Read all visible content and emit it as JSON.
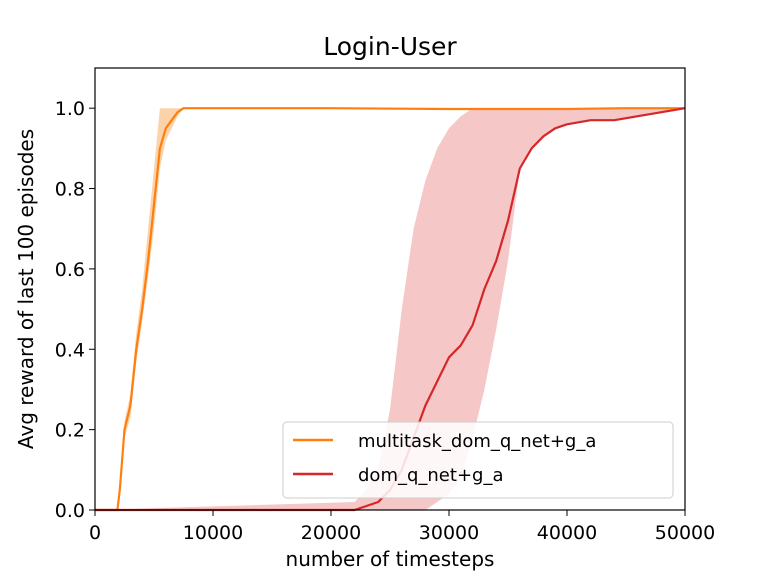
{
  "chart_data": {
    "type": "line",
    "title": "Login-User",
    "xlabel": "number of timesteps",
    "ylabel": "Avg reward of last 100 episodes",
    "xlim": [
      0,
      50000
    ],
    "ylim": [
      0,
      1.1
    ],
    "xticks": [
      "0",
      "10000",
      "20000",
      "30000",
      "40000",
      "50000"
    ],
    "yticks": [
      "0.0",
      "0.2",
      "0.4",
      "0.6",
      "0.8",
      "1.0"
    ],
    "xtick_values": [
      0,
      10000,
      20000,
      30000,
      40000,
      50000
    ],
    "ytick_values": [
      0.0,
      0.2,
      0.4,
      0.6,
      0.8,
      1.0
    ],
    "grid": false,
    "legend_position": "bottom-right",
    "series": [
      {
        "name": "multitask_dom_q_net+g_a",
        "color": "#ff7f0e",
        "band_color": "#f8c48f",
        "x": [
          0,
          1900,
          2100,
          2500,
          3000,
          3500,
          4000,
          4500,
          5000,
          5500,
          6000,
          6500,
          7000,
          7500,
          8000,
          10000,
          20000,
          30000,
          40000,
          45000,
          50000
        ],
        "y": [
          0,
          0,
          0.05,
          0.2,
          0.26,
          0.4,
          0.5,
          0.62,
          0.76,
          0.9,
          0.95,
          0.97,
          0.99,
          1.0,
          1.0,
          1.0,
          1.0,
          0.998,
          0.998,
          1.0,
          1.0
        ],
        "lower": [
          0,
          0,
          0.04,
          0.18,
          0.23,
          0.37,
          0.47,
          0.58,
          0.7,
          0.85,
          0.92,
          0.95,
          0.98,
          1.0,
          1.0,
          1.0,
          1.0,
          0.998,
          0.998,
          1.0,
          1.0
        ],
        "upper": [
          0,
          0,
          0.06,
          0.22,
          0.29,
          0.44,
          0.55,
          0.7,
          0.85,
          1.0,
          1.0,
          1.0,
          1.0,
          1.0,
          1.0,
          1.0,
          1.0,
          0.998,
          0.998,
          1.0,
          1.0
        ]
      },
      {
        "name": "dom_q_net+g_a",
        "color": "#d62728",
        "band_color": "#f2b4b4",
        "x": [
          0,
          22000,
          23000,
          24000,
          25000,
          26000,
          27000,
          28000,
          29000,
          30000,
          31000,
          32000,
          33000,
          34000,
          35000,
          36000,
          37000,
          38000,
          39000,
          40000,
          42000,
          44000,
          46000,
          48000,
          50000
        ],
        "y": [
          0,
          0,
          0.01,
          0.02,
          0.05,
          0.1,
          0.18,
          0.26,
          0.32,
          0.38,
          0.41,
          0.46,
          0.55,
          0.62,
          0.72,
          0.85,
          0.9,
          0.93,
          0.95,
          0.96,
          0.97,
          0.97,
          0.98,
          0.99,
          1.0
        ],
        "lower": [
          0,
          0,
          0,
          0,
          0,
          0,
          0,
          0,
          0.02,
          0.04,
          0.08,
          0.18,
          0.3,
          0.45,
          0.62,
          0.85,
          0.9,
          0.93,
          0.95,
          0.96,
          0.97,
          0.97,
          0.98,
          0.99,
          1.0
        ],
        "upper": [
          0,
          0.02,
          0.05,
          0.1,
          0.25,
          0.5,
          0.7,
          0.82,
          0.9,
          0.95,
          0.98,
          1.0,
          1.0,
          1.0,
          1.0,
          1.0,
          1.0,
          1.0,
          1.0,
          1.0,
          1.0,
          1.0,
          1.0,
          1.0,
          1.0
        ]
      }
    ]
  }
}
